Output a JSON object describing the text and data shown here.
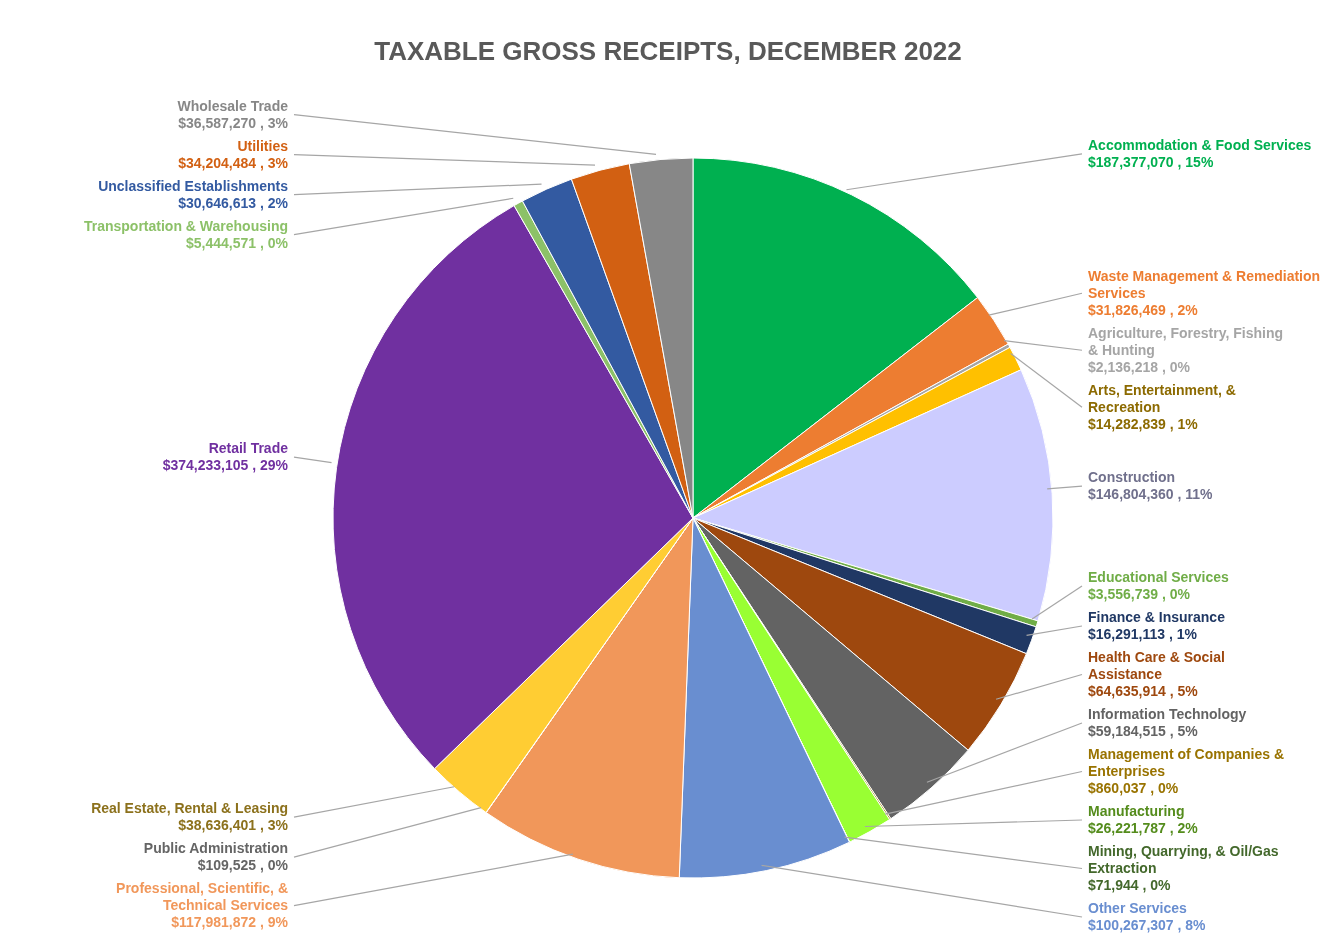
{
  "chart_data": {
    "type": "pie",
    "title": "TAXABLE GROSS RECEIPTS, DECEMBER 2022",
    "categories": [
      "Accommodation & Food Services",
      "Waste Management & Remediation Services",
      "Agriculture, Forestry, Fishing & Hunting",
      "Arts, Entertainment, & Recreation",
      "Construction",
      "Educational Services",
      "Finance & Insurance",
      "Health Care & Social Assistance",
      "Information Technology",
      "Management of Companies & Enterprises",
      "Manufacturing",
      "Mining, Quarrying, & Oil/Gas Extraction",
      "Other Services",
      "Professional, Scientific, & Technical Services",
      "Public Administration",
      "Real Estate, Rental & Leasing",
      "Retail Trade",
      "Transportation & Warehousing",
      "Unclassified Establishments",
      "Utilities",
      "Wholesale Trade"
    ],
    "values": [
      187377070,
      31826469,
      2136218,
      14282839,
      146804360,
      3556739,
      16291113,
      64635914,
      59184515,
      860037,
      26221787,
      71944,
      100267307,
      117981872,
      109525,
      38636401,
      374233105,
      5444571,
      30646613,
      34204484,
      36587270
    ],
    "value_labels": [
      "$187,377,070 , 15%",
      "$31,826,469 , 2%",
      "$2,136,218 , 0%",
      "$14,282,839 , 1%",
      "$146,804,360 , 11%",
      "$3,556,739 , 0%",
      "$16,291,113 , 1%",
      "$64,635,914 , 5%",
      "$59,184,515 , 5%",
      "$860,037 , 0%",
      "$26,221,787 , 2%",
      "$71,944 , 0%",
      "$100,267,307 , 8%",
      "$117,981,872 , 9%",
      "$109,525 , 0%",
      "$38,636,401 , 3%",
      "$374,233,105 , 29%",
      "$5,444,571 , 0%",
      "$30,646,613 , 2%",
      "$34,204,484 , 3%",
      "$36,587,270 , 3%"
    ],
    "colors": [
      "#00b050",
      "#ed7d31",
      "#a5a5a5",
      "#ffc000",
      "#ccccff",
      "#70ad47",
      "#203864",
      "#9e480e",
      "#636363",
      "#997300",
      "#99ff33",
      "#43682b",
      "#698ed0",
      "#f1975a",
      "#b7b7b7",
      "#ffcd33",
      "#7030a0",
      "#8cc168",
      "#335aa1",
      "#d26012",
      "#878787"
    ],
    "legend": false
  }
}
